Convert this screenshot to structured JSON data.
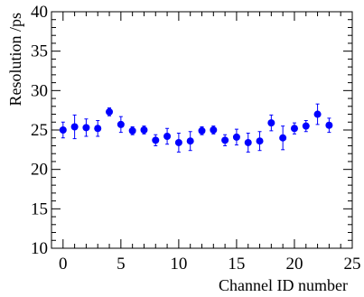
{
  "chart_data": {
    "type": "scatter",
    "xlabel": "Channel ID number",
    "ylabel": "Resolution /ps",
    "xlim": [
      -1,
      25
    ],
    "ylim": [
      10,
      40
    ],
    "xticks": [
      "0",
      "5",
      "10",
      "15",
      "20",
      "25"
    ],
    "yticks": [
      "10",
      "15",
      "20",
      "25",
      "30",
      "35",
      "40"
    ],
    "xtick_values": [
      0,
      5,
      10,
      15,
      20,
      25
    ],
    "ytick_values": [
      10,
      15,
      20,
      25,
      30,
      35,
      40
    ],
    "marker_color": "#0000ff",
    "grid": false,
    "series": [
      {
        "x": [
          0,
          1,
          2,
          3,
          4,
          5,
          6,
          7,
          8,
          9,
          10,
          11,
          12,
          13,
          14,
          15,
          16,
          17,
          18,
          19,
          20,
          21,
          22,
          23
        ],
        "y": [
          25.0,
          25.4,
          25.3,
          25.2,
          27.3,
          25.7,
          24.9,
          25.0,
          23.7,
          24.2,
          23.4,
          23.6,
          24.9,
          25.0,
          23.7,
          24.1,
          23.4,
          23.6,
          25.9,
          24.0,
          25.2,
          25.5,
          27.0,
          25.6
        ],
        "err": [
          1.0,
          1.5,
          1.1,
          1.0,
          0.5,
          1.0,
          0.5,
          0.5,
          0.7,
          1.0,
          1.2,
          1.2,
          0.5,
          0.5,
          0.7,
          1.0,
          1.2,
          1.2,
          1.0,
          1.5,
          0.7,
          0.7,
          1.3,
          0.9
        ]
      }
    ]
  }
}
